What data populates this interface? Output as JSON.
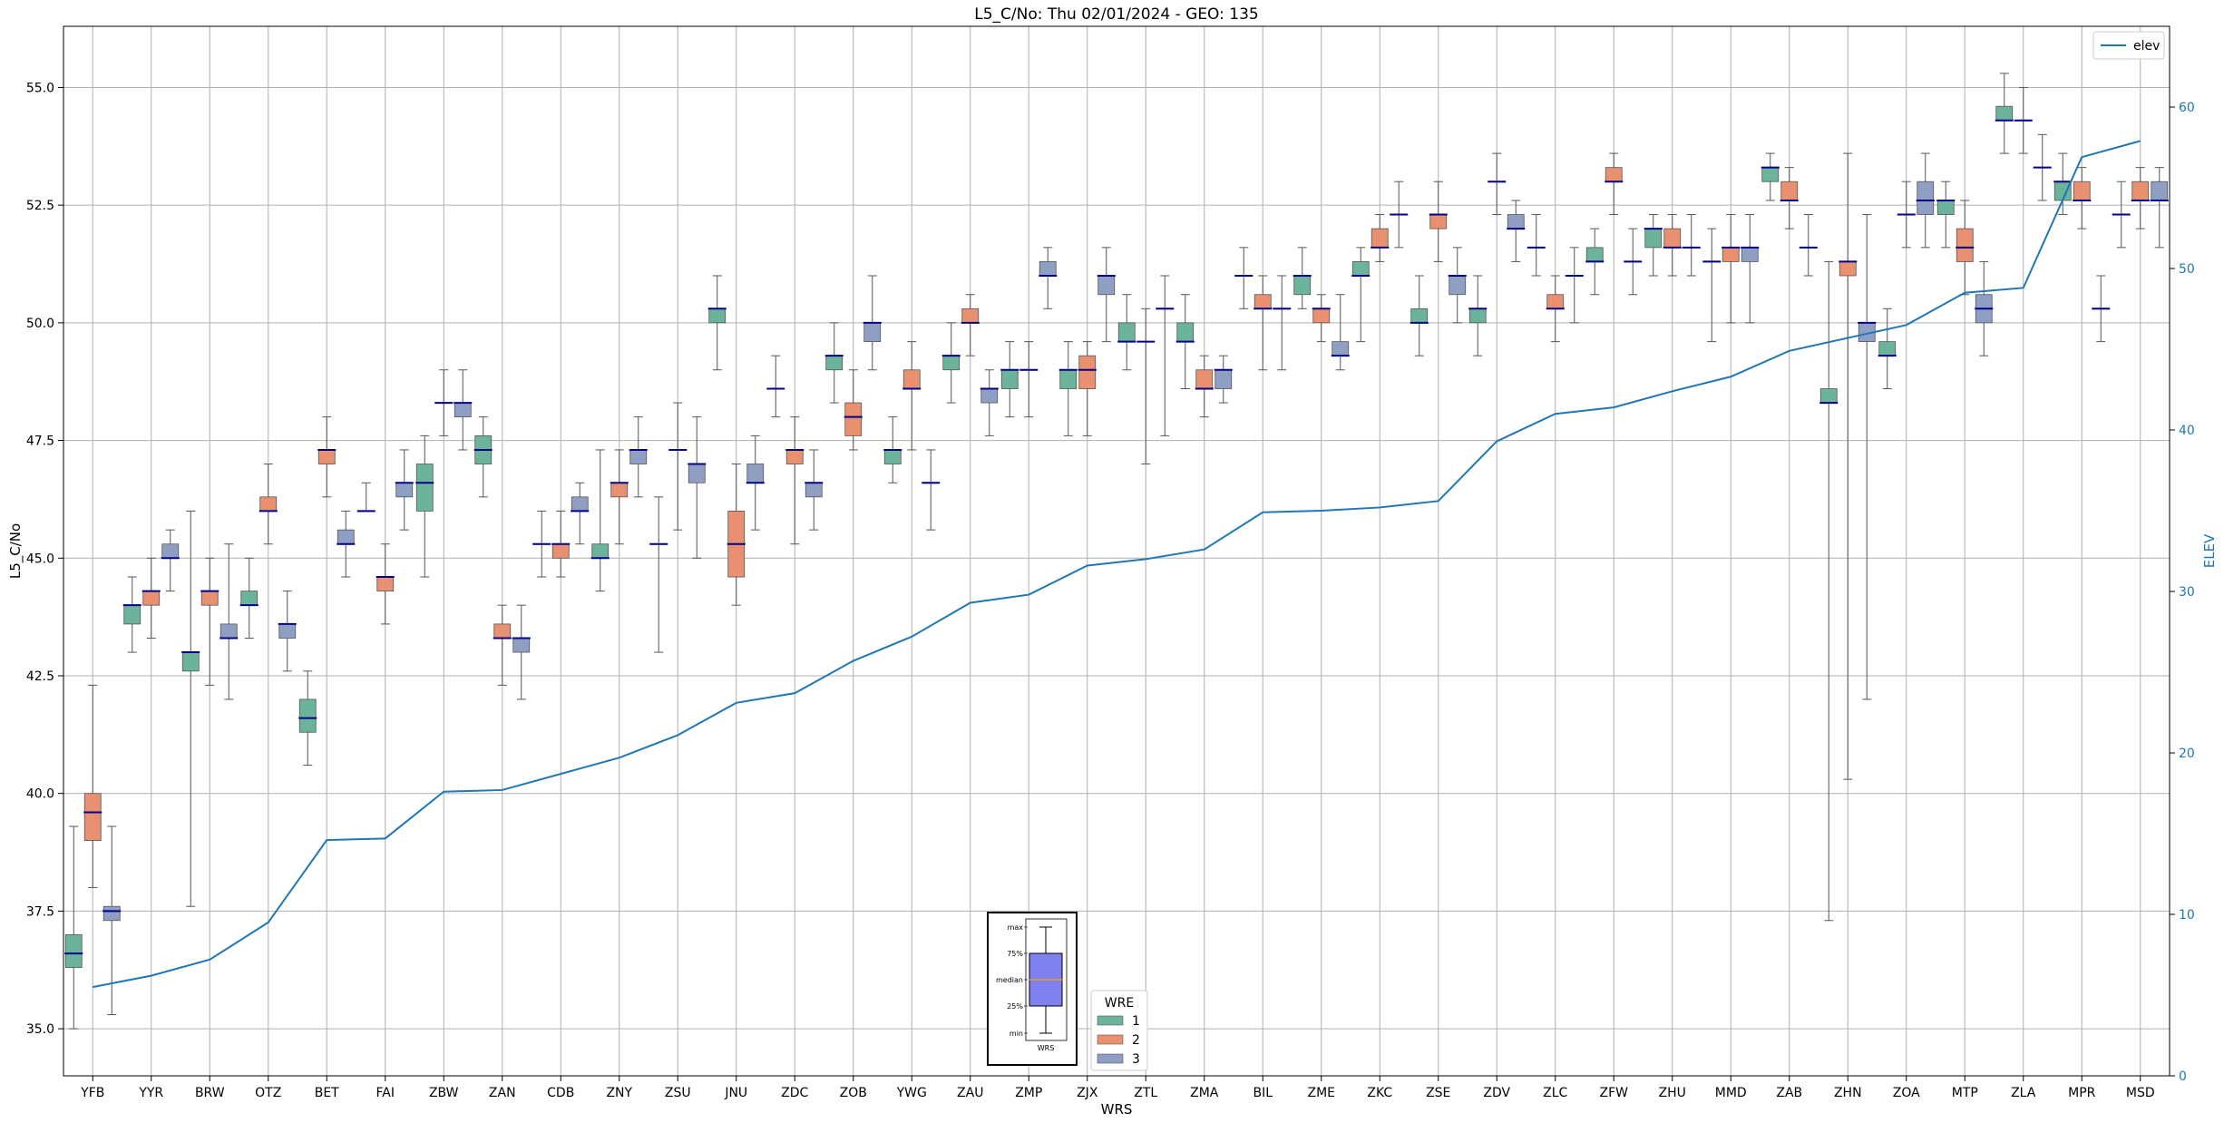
{
  "chart_data": {
    "type": "box",
    "title": "L5_C/No: Thu 02/01/2024 - GEO: 135",
    "xlabel": "WRS",
    "ylabel": "L5_C/No",
    "y2label": "ELEV",
    "ylim": [
      34.0,
      56.3
    ],
    "y2lim": [
      0,
      65
    ],
    "yticks": [
      35.0,
      37.5,
      40.0,
      42.5,
      45.0,
      47.5,
      50.0,
      52.5,
      55.0
    ],
    "ytick_labels": [
      "35.0",
      "37.5",
      "40.0",
      "42.5",
      "45.0",
      "47.5",
      "50.0",
      "52.5",
      "55.0"
    ],
    "y2ticks": [
      0,
      10,
      20,
      30,
      40,
      50,
      60
    ],
    "y2tick_labels": [
      "0",
      "10",
      "20",
      "30",
      "40",
      "50",
      "60"
    ],
    "grid": true,
    "categories": [
      "YFB",
      "YYR",
      "BRW",
      "OTZ",
      "BET",
      "FAI",
      "ZBW",
      "ZAN",
      "CDB",
      "ZNY",
      "ZSU",
      "JNU",
      "ZDC",
      "ZOB",
      "YWG",
      "ZAU",
      "ZMP",
      "ZJX",
      "ZTL",
      "ZMA",
      "BIL",
      "ZME",
      "ZKC",
      "ZSE",
      "ZDV",
      "ZLC",
      "ZFW",
      "ZHU",
      "MMD",
      "ZAB",
      "ZHN",
      "ZOA",
      "MTP",
      "ZLA",
      "MPR",
      "MSD"
    ],
    "group_legend": {
      "title": "WRE",
      "entries": [
        {
          "label": "1",
          "color": "#6bb39a"
        },
        {
          "label": "2",
          "color": "#e8906f"
        },
        {
          "label": "3",
          "color": "#8f9fc4"
        }
      ],
      "placement": "bottom-center"
    },
    "line_legend": {
      "label": "elev",
      "color": "#1f77b4",
      "placement": "top-right"
    },
    "reference_box_labels": [
      "max",
      "75%",
      "median",
      "25%",
      "min",
      "WRS"
    ],
    "boxes": [
      [
        [
          35.0,
          36.3,
          36.6,
          37.0,
          39.3
        ],
        [
          38.0,
          39.0,
          39.6,
          40.0,
          42.3
        ],
        [
          35.3,
          37.3,
          37.5,
          37.6,
          39.3
        ]
      ],
      [
        [
          43.0,
          43.6,
          44.0,
          44.0,
          44.6
        ],
        [
          43.3,
          44.0,
          44.3,
          44.3,
          45.0
        ],
        [
          44.3,
          45.0,
          45.0,
          45.3,
          45.6
        ]
      ],
      [
        [
          37.6,
          42.6,
          43.0,
          43.0,
          46.0
        ],
        [
          42.3,
          44.0,
          44.3,
          44.3,
          45.0
        ],
        [
          42.0,
          43.3,
          43.3,
          43.6,
          45.3
        ]
      ],
      [
        [
          43.3,
          44.0,
          44.0,
          44.3,
          45.0
        ],
        [
          45.3,
          46.0,
          46.0,
          46.3,
          47.0
        ],
        [
          42.6,
          43.3,
          43.6,
          43.6,
          44.3
        ]
      ],
      [
        [
          40.6,
          41.3,
          41.6,
          42.0,
          42.6
        ],
        [
          46.3,
          47.0,
          47.3,
          47.3,
          48.0
        ],
        [
          44.6,
          45.3,
          45.3,
          45.6,
          46.0
        ]
      ],
      [
        [
          46.0,
          46.0,
          46.0,
          46.0,
          46.6
        ],
        [
          43.6,
          44.3,
          44.6,
          44.6,
          45.3
        ],
        [
          45.6,
          46.3,
          46.6,
          46.6,
          47.3
        ]
      ],
      [
        [
          44.6,
          46.0,
          46.6,
          47.0,
          47.6
        ],
        [
          47.6,
          48.3,
          48.3,
          48.3,
          49.0
        ],
        [
          47.3,
          48.0,
          48.3,
          48.3,
          49.0
        ]
      ],
      [
        [
          46.3,
          47.0,
          47.3,
          47.6,
          48.0
        ],
        [
          42.3,
          43.3,
          43.3,
          43.6,
          44.0
        ],
        [
          42.0,
          43.0,
          43.3,
          43.3,
          44.0
        ]
      ],
      [
        [
          44.6,
          45.3,
          45.3,
          45.3,
          46.0
        ],
        [
          44.6,
          45.0,
          45.3,
          45.3,
          46.0
        ],
        [
          45.3,
          46.0,
          46.0,
          46.3,
          46.6
        ]
      ],
      [
        [
          44.3,
          45.0,
          45.0,
          45.3,
          47.3
        ],
        [
          45.3,
          46.3,
          46.6,
          46.6,
          47.3
        ],
        [
          46.3,
          47.0,
          47.3,
          47.3,
          48.0
        ]
      ],
      [
        [
          43.0,
          45.3,
          45.3,
          45.3,
          46.3
        ],
        [
          45.6,
          47.3,
          47.3,
          47.3,
          48.3
        ],
        [
          45.0,
          46.6,
          47.0,
          47.0,
          48.0
        ]
      ],
      [
        [
          49.0,
          50.0,
          50.3,
          50.3,
          51.0
        ],
        [
          44.0,
          44.6,
          45.3,
          46.0,
          47.0
        ],
        [
          45.6,
          46.6,
          46.6,
          47.0,
          47.6
        ]
      ],
      [
        [
          48.0,
          48.6,
          48.6,
          48.6,
          49.3
        ],
        [
          45.3,
          47.0,
          47.3,
          47.3,
          48.0
        ],
        [
          45.6,
          46.3,
          46.6,
          46.6,
          47.3
        ]
      ],
      [
        [
          48.3,
          49.0,
          49.3,
          49.3,
          50.0
        ],
        [
          47.3,
          47.6,
          48.0,
          48.3,
          49.0
        ],
        [
          49.0,
          49.6,
          50.0,
          50.0,
          51.0
        ]
      ],
      [
        [
          46.6,
          47.0,
          47.3,
          47.3,
          48.0
        ],
        [
          47.3,
          48.6,
          48.6,
          49.0,
          49.6
        ],
        [
          45.6,
          46.6,
          46.6,
          46.6,
          47.3
        ]
      ],
      [
        [
          48.3,
          49.0,
          49.3,
          49.3,
          50.0
        ],
        [
          49.3,
          50.0,
          50.0,
          50.3,
          50.6
        ],
        [
          47.6,
          48.3,
          48.6,
          48.6,
          49.0
        ]
      ],
      [
        [
          48.0,
          48.6,
          49.0,
          49.0,
          49.6
        ],
        [
          48.0,
          49.0,
          49.0,
          49.0,
          49.6
        ],
        [
          50.3,
          51.0,
          51.0,
          51.3,
          51.6
        ]
      ],
      [
        [
          47.6,
          48.6,
          49.0,
          49.0,
          49.6
        ],
        [
          47.6,
          48.6,
          49.0,
          49.3,
          49.6
        ],
        [
          49.6,
          50.6,
          51.0,
          51.0,
          51.6
        ]
      ],
      [
        [
          49.0,
          49.6,
          49.6,
          50.0,
          50.6
        ],
        [
          47.0,
          49.6,
          49.6,
          49.6,
          50.3
        ],
        [
          47.6,
          50.3,
          50.3,
          50.3,
          51.0
        ]
      ],
      [
        [
          48.6,
          49.6,
          49.6,
          50.0,
          50.6
        ],
        [
          48.0,
          48.6,
          48.6,
          49.0,
          49.3
        ],
        [
          48.3,
          48.6,
          49.0,
          49.0,
          49.3
        ]
      ],
      [
        [
          50.3,
          51.0,
          51.0,
          51.0,
          51.6
        ],
        [
          49.0,
          50.3,
          50.3,
          50.6,
          51.0
        ],
        [
          49.0,
          50.3,
          50.3,
          50.3,
          51.0
        ]
      ],
      [
        [
          50.3,
          50.6,
          51.0,
          51.0,
          51.6
        ],
        [
          49.6,
          50.0,
          50.3,
          50.3,
          50.6
        ],
        [
          49.0,
          49.3,
          49.3,
          49.6,
          50.6
        ]
      ],
      [
        [
          49.6,
          51.0,
          51.0,
          51.3,
          51.6
        ],
        [
          51.3,
          51.6,
          51.6,
          52.0,
          52.3
        ],
        [
          51.6,
          52.3,
          52.3,
          52.3,
          53.0
        ]
      ],
      [
        [
          49.3,
          50.0,
          50.0,
          50.3,
          51.0
        ],
        [
          51.3,
          52.0,
          52.3,
          52.3,
          53.0
        ],
        [
          50.0,
          50.6,
          51.0,
          51.0,
          51.6
        ]
      ],
      [
        [
          49.3,
          50.0,
          50.3,
          50.3,
          51.0
        ],
        [
          52.3,
          53.0,
          53.0,
          53.0,
          53.6
        ],
        [
          51.3,
          52.0,
          52.0,
          52.3,
          52.6
        ]
      ],
      [
        [
          51.0,
          51.6,
          51.6,
          51.6,
          52.3
        ],
        [
          49.6,
          50.3,
          50.3,
          50.6,
          51.0
        ],
        [
          50.0,
          51.0,
          51.0,
          51.0,
          51.6
        ]
      ],
      [
        [
          50.6,
          51.3,
          51.3,
          51.6,
          52.0
        ],
        [
          52.3,
          53.0,
          53.0,
          53.3,
          53.6
        ],
        [
          50.6,
          51.3,
          51.3,
          51.3,
          52.0
        ]
      ],
      [
        [
          51.0,
          51.6,
          52.0,
          52.0,
          52.3
        ],
        [
          51.0,
          51.6,
          51.6,
          52.0,
          52.3
        ],
        [
          51.0,
          51.6,
          51.6,
          51.6,
          52.3
        ]
      ],
      [
        [
          49.6,
          51.3,
          51.3,
          51.3,
          52.0
        ],
        [
          50.0,
          51.3,
          51.6,
          51.6,
          52.3
        ],
        [
          50.0,
          51.3,
          51.6,
          51.6,
          52.3
        ]
      ],
      [
        [
          52.6,
          53.0,
          53.3,
          53.3,
          53.6
        ],
        [
          52.0,
          52.6,
          52.6,
          53.0,
          53.3
        ],
        [
          51.0,
          51.6,
          51.6,
          51.6,
          52.3
        ]
      ],
      [
        [
          37.3,
          48.3,
          48.3,
          48.6,
          51.3
        ],
        [
          40.3,
          51.0,
          51.3,
          51.3,
          53.6
        ],
        [
          42.0,
          49.6,
          50.0,
          50.0,
          52.3
        ]
      ],
      [
        [
          48.6,
          49.3,
          49.3,
          49.6,
          50.3
        ],
        [
          51.6,
          52.3,
          52.3,
          52.3,
          53.0
        ],
        [
          51.6,
          52.3,
          52.6,
          53.0,
          53.6
        ]
      ],
      [
        [
          51.6,
          52.3,
          52.6,
          52.6,
          53.0
        ],
        [
          50.6,
          51.3,
          51.6,
          52.0,
          52.6
        ],
        [
          49.3,
          50.0,
          50.3,
          50.6,
          51.3
        ]
      ],
      [
        [
          53.6,
          54.3,
          54.3,
          54.6,
          55.3
        ],
        [
          53.6,
          54.3,
          54.3,
          54.3,
          55.0
        ],
        [
          52.6,
          53.3,
          53.3,
          53.3,
          54.0
        ]
      ],
      [
        [
          52.3,
          52.6,
          53.0,
          53.0,
          53.6
        ],
        [
          52.0,
          52.6,
          52.6,
          53.0,
          53.3
        ],
        [
          49.6,
          50.3,
          50.3,
          50.3,
          51.0
        ]
      ],
      [
        [
          51.6,
          52.3,
          52.3,
          52.3,
          53.0
        ],
        [
          52.0,
          52.6,
          52.6,
          53.0,
          53.3
        ],
        [
          51.6,
          52.6,
          52.6,
          53.0,
          53.3
        ]
      ]
    ],
    "series": [
      {
        "name": "elev",
        "axis": "right",
        "color": "#1f77b4",
        "values": [
          5.5,
          6.2,
          7.2,
          9.5,
          14.6,
          14.7,
          17.6,
          17.7,
          18.7,
          19.7,
          21.1,
          23.1,
          23.7,
          25.7,
          27.2,
          29.3,
          29.8,
          31.6,
          32.0,
          32.6,
          34.9,
          35.0,
          35.2,
          35.6,
          39.3,
          41.0,
          41.4,
          42.4,
          43.3,
          44.9,
          45.7,
          46.5,
          48.5,
          48.8,
          56.9,
          57.9
        ]
      }
    ]
  }
}
